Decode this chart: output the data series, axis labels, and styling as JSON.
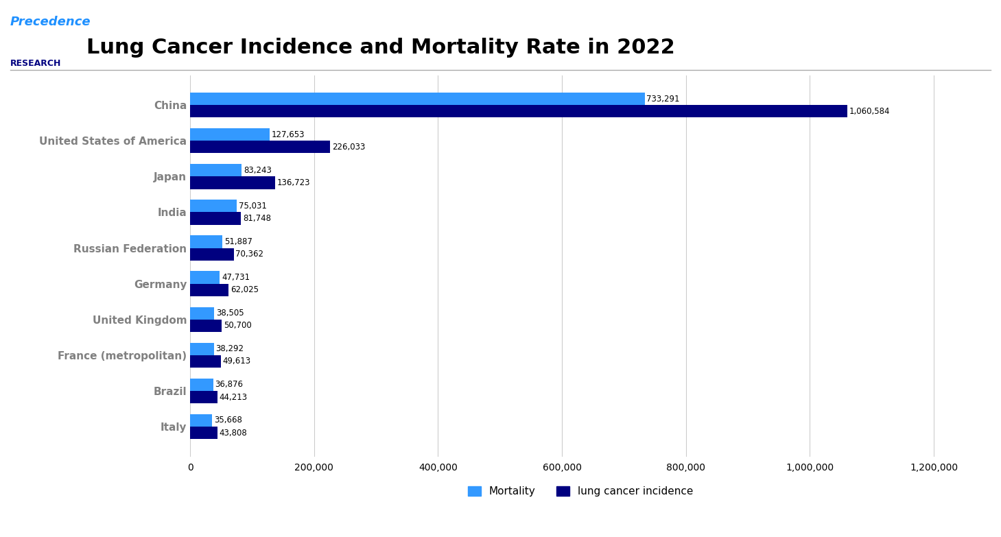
{
  "title": "Lung Cancer Incidence and Mortality Rate in 2022",
  "categories": [
    "Italy",
    "Brazil",
    "France (metropolitan)",
    "United Kingdom",
    "Germany",
    "Russian Federation",
    "India",
    "Japan",
    "United States of America",
    "China"
  ],
  "mortality": [
    35668,
    36876,
    38292,
    38505,
    47731,
    51887,
    75031,
    83243,
    127653,
    733291
  ],
  "incidence": [
    43808,
    44213,
    49613,
    50700,
    62025,
    70362,
    81748,
    136723,
    226033,
    1060584
  ],
  "mortality_color": "#3399FF",
  "incidence_color": "#000080",
  "mortality_label": "Mortality",
  "incidence_label": "lung cancer incidence",
  "xlim": [
    0,
    1260000
  ],
  "xticks": [
    0,
    200000,
    400000,
    600000,
    800000,
    1000000,
    1200000
  ],
  "background_color": "#FFFFFF",
  "plot_bg_color": "#FFFFFF",
  "title_fontsize": 22,
  "label_fontsize": 11,
  "tick_fontsize": 10,
  "bar_height": 0.35,
  "annotation_fontsize": 8.5,
  "ylabel_color": "#808080",
  "grid_color": "#CCCCCC",
  "logo_text_precedence": "Precedence",
  "logo_text_research": "RESEARCH",
  "logo_color_blue": "#1E90FF",
  "logo_color_dark": "#000080"
}
